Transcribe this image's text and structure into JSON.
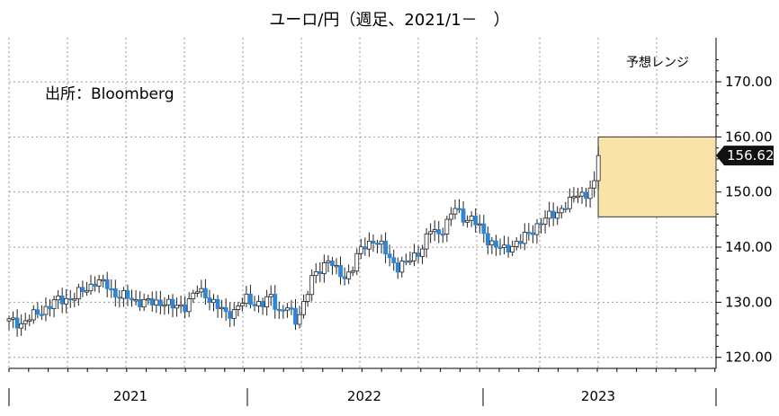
{
  "title": "ユーロ/円（週足、2021/1－　）",
  "source_note": "出所：Bloomberg",
  "range_label": "予想レンジ",
  "last_price_label": "156.62",
  "colors": {
    "up": "#ffffff",
    "down": "#2f86d6",
    "range_fill": "#f9e3a8",
    "range_stroke": "#333333",
    "last_badge": "#111111"
  },
  "chart_data": {
    "type": "candlestick",
    "title": "ユーロ/円（週足、2021/1－　）",
    "y_ticks": [
      "120.00",
      "130.00",
      "140.00",
      "150.00",
      "160.00",
      "170.00"
    ],
    "ylim": [
      118,
      178
    ],
    "x_categories": [
      "2021",
      "2022",
      "2023"
    ],
    "x_period": {
      "start": "2021-01",
      "end": "2023-12"
    },
    "grid": true,
    "last_price": 156.62,
    "forecast_range": {
      "low": 145.5,
      "high": 160.0
    },
    "anchors": [
      [
        0,
        126.5
      ],
      [
        3,
        126.2
      ],
      [
        6,
        127.5
      ],
      [
        9,
        129.0
      ],
      [
        12,
        130.3
      ],
      [
        16,
        131.0
      ],
      [
        19,
        132.5
      ],
      [
        21,
        133.8
      ],
      [
        24,
        133.0
      ],
      [
        26,
        131.5
      ],
      [
        30,
        130.5
      ],
      [
        35,
        129.8
      ],
      [
        38,
        130.2
      ],
      [
        40,
        129.0
      ],
      [
        43,
        129.5
      ],
      [
        46,
        132.0
      ],
      [
        48,
        131.5
      ],
      [
        51,
        129.0
      ],
      [
        53,
        128.0
      ],
      [
        55,
        128.5
      ],
      [
        58,
        130.5
      ],
      [
        60,
        130.0
      ],
      [
        62,
        129.5
      ],
      [
        64,
        131.0
      ],
      [
        66,
        128.5
      ],
      [
        68,
        129.0
      ],
      [
        70,
        126.5
      ],
      [
        72,
        130.0
      ],
      [
        74,
        134.0
      ],
      [
        76,
        136.0
      ],
      [
        78,
        138.0
      ],
      [
        80,
        135.5
      ],
      [
        82,
        134.5
      ],
      [
        84,
        136.5
      ],
      [
        86,
        139.5
      ],
      [
        89,
        141.5
      ],
      [
        91,
        140.0
      ],
      [
        93,
        138.0
      ],
      [
        95,
        136.5
      ],
      [
        97,
        137.0
      ],
      [
        99,
        138.5
      ],
      [
        101,
        140.0
      ],
      [
        103,
        143.0
      ],
      [
        105,
        142.5
      ],
      [
        107,
        144.5
      ],
      [
        109,
        147.0
      ],
      [
        111,
        145.5
      ],
      [
        113,
        145.0
      ],
      [
        115,
        143.5
      ],
      [
        117,
        141.5
      ],
      [
        119,
        140.0
      ],
      [
        121,
        139.5
      ],
      [
        123,
        140.5
      ],
      [
        125,
        141.0
      ],
      [
        127,
        142.5
      ],
      [
        129,
        144.0
      ],
      [
        131,
        145.0
      ],
      [
        133,
        146.0
      ],
      [
        135,
        147.0
      ],
      [
        137,
        148.0
      ],
      [
        139,
        150.0
      ],
      [
        141,
        149.5
      ],
      [
        142,
        150.5
      ],
      [
        143,
        151.0
      ],
      [
        144,
        156.6
      ]
    ]
  }
}
